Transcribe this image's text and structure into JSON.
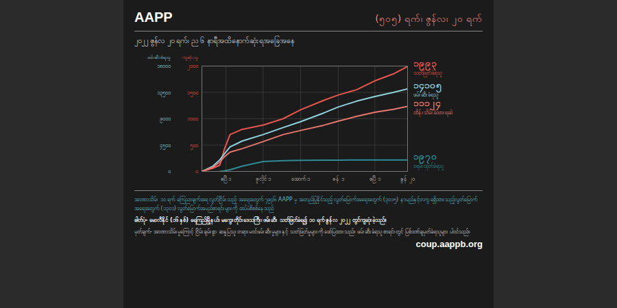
{
  "header": {
    "org": "AAPP",
    "date": "(၅၀၅) ရက်၊ ဇွန်လ၊ ၂၀ ရက်"
  },
  "chart_data": {
    "type": "line",
    "subtitle": "၂၀၂၂ ဇွန်လ ၂၀ ရက်၊ ည ၆ နာရီအထိနောက်ဆုံးရအခြေအနေ",
    "ylabel": "ဖမ်းဆီးခံရသူ",
    "y2label": "ကျဆုံးသူ",
    "x": [
      1,
      28,
      45,
      56,
      70,
      100,
      151,
      200,
      243,
      300,
      335,
      380,
      425,
      470,
      505
    ],
    "xlim": [
      1,
      505
    ],
    "xticks": [
      {
        "value": 60,
        "label": "ဧပြီ ၁"
      },
      {
        "value": 151,
        "label": "ဇူလိုင် ၁"
      },
      {
        "value": 243,
        "label": "အောက် ၁"
      },
      {
        "value": 335,
        "label": "ဇန် ၁"
      },
      {
        "value": 425,
        "label": "ဧပြီ ၁"
      },
      {
        "value": 505,
        "label": "ဇွန် ၂၀"
      }
    ],
    "ylim": [
      0,
      18000
    ],
    "yticks": [
      {
        "value": 0,
        "label": "၀"
      },
      {
        "value": 4500,
        "label": "၄၅၀၀"
      },
      {
        "value": 9000,
        "label": "၉၀၀၀"
      },
      {
        "value": 13500,
        "label": "၁၃၅၀၀"
      },
      {
        "value": 18000,
        "label": "၁၈၀၀၀"
      }
    ],
    "y2lim": [
      0,
      2000
    ],
    "y2ticks": [
      {
        "value": 0,
        "label": "၀"
      },
      {
        "value": 500,
        "label": "၅၀၀"
      },
      {
        "value": 1000,
        "label": "၁၀၀၀"
      },
      {
        "value": 1500,
        "label": "၁၅၀၀"
      },
      {
        "value": 2000,
        "label": "၂၀၀၀"
      }
    ],
    "grid": true,
    "series": [
      {
        "name": "သတ်ဖြတ်ခံရသူ",
        "color": "#e8574f",
        "axis": "y2",
        "values": [
          0,
          60,
          120,
          420,
          700,
          800,
          880,
          1000,
          1170,
          1350,
          1450,
          1550,
          1720,
          1850,
          1993
        ],
        "value_labels": [
          null,
          null,
          null,
          null,
          null,
          null,
          null,
          null,
          null,
          null,
          null,
          null,
          null,
          null,
          "၁၉၉၃"
        ]
      },
      {
        "name": "ဖမ်းဆီးခံရသူ",
        "color": "#8fd3e0",
        "values": [
          0,
          900,
          2000,
          3000,
          4200,
          5200,
          6300,
          7500,
          8500,
          10000,
          11000,
          12000,
          12800,
          13500,
          14105
        ],
        "value_labels": [
          null,
          null,
          null,
          null,
          null,
          null,
          null,
          null,
          null,
          null,
          null,
          null,
          null,
          null,
          "၁၄၁၀၅"
        ]
      },
      {
        "name": "ထိန်းသိမ်းခံထားရဆဲ",
        "color": "#e8786e",
        "values": [
          0,
          700,
          1600,
          2500,
          3300,
          3900,
          5100,
          6300,
          7000,
          7900,
          8600,
          9400,
          10100,
          10600,
          11124
        ],
        "value_labels": [
          null,
          null,
          null,
          null,
          null,
          null,
          null,
          null,
          null,
          null,
          null,
          null,
          null,
          null,
          "၁၁၁၂၄"
        ]
      },
      {
        "name": "ဝရမ်းထုတ်ခံရသူ",
        "color": "#2e8c99",
        "values": [
          null,
          null,
          0,
          100,
          300,
          900,
          1700,
          1850,
          1900,
          1930,
          1940,
          1950,
          1960,
          1965,
          1970
        ],
        "value_labels": [
          null,
          null,
          null,
          null,
          null,
          null,
          null,
          null,
          null,
          null,
          null,
          null,
          null,
          null,
          "၁၉၇၀"
        ]
      }
    ]
  },
  "notes": [
    "အာဏာသိမ်း ၁၀ ရက် ကြေညာချက်အရ လွတ်ငြိမ်းသည့် အရေအတွက် ၇၉၄၆၊ AAPP မှ အတည်ပြုနိုင်သည့် လွတ်မြောက်အရေအတွက် (၃၀၁၅) နာမည်နှင့်တကွ ရရှိထားသည့်လွတ်မြောက်အရေအတွက် (၁၃၀၁) လွတ်မြောက်အမည်စာရင်းများကို ထပ်မံစိစစ်နေသည်",
    "ဓါတ်ပုံ- မောလီနိုင် (၁၆ နှစ်) ရေကြည်မြို့နယ်၊ မကွေးတိုင်းဒေသကြီး၊ ဖမ်းဆီး သတ်ဖြတ်ခံရ၍ ၁၀ ရက် ဇွန်လ ၂၀၂၂ တွင်ကျဆုံးခဲ့သည်။",
    "မှတ်ချက်- အာဏာသိမ်းမှုကြောင့် ငြိမ်းချမ်းစွာ ဆန္ဒပြသူ၊ တရားမဝင်ဖမ်းဆီးမှုများနှင့် သတ်ဖြတ်မှုများကို ဖော်ပြထားသည်။ ဖမ်းဆီးခံရသူ စာရင်းတွင် ပြစ်ဒဏ်ချမှတ်ခံရသူများ ပါဝင်သည်။"
  ],
  "url": "coup.aappb.org"
}
